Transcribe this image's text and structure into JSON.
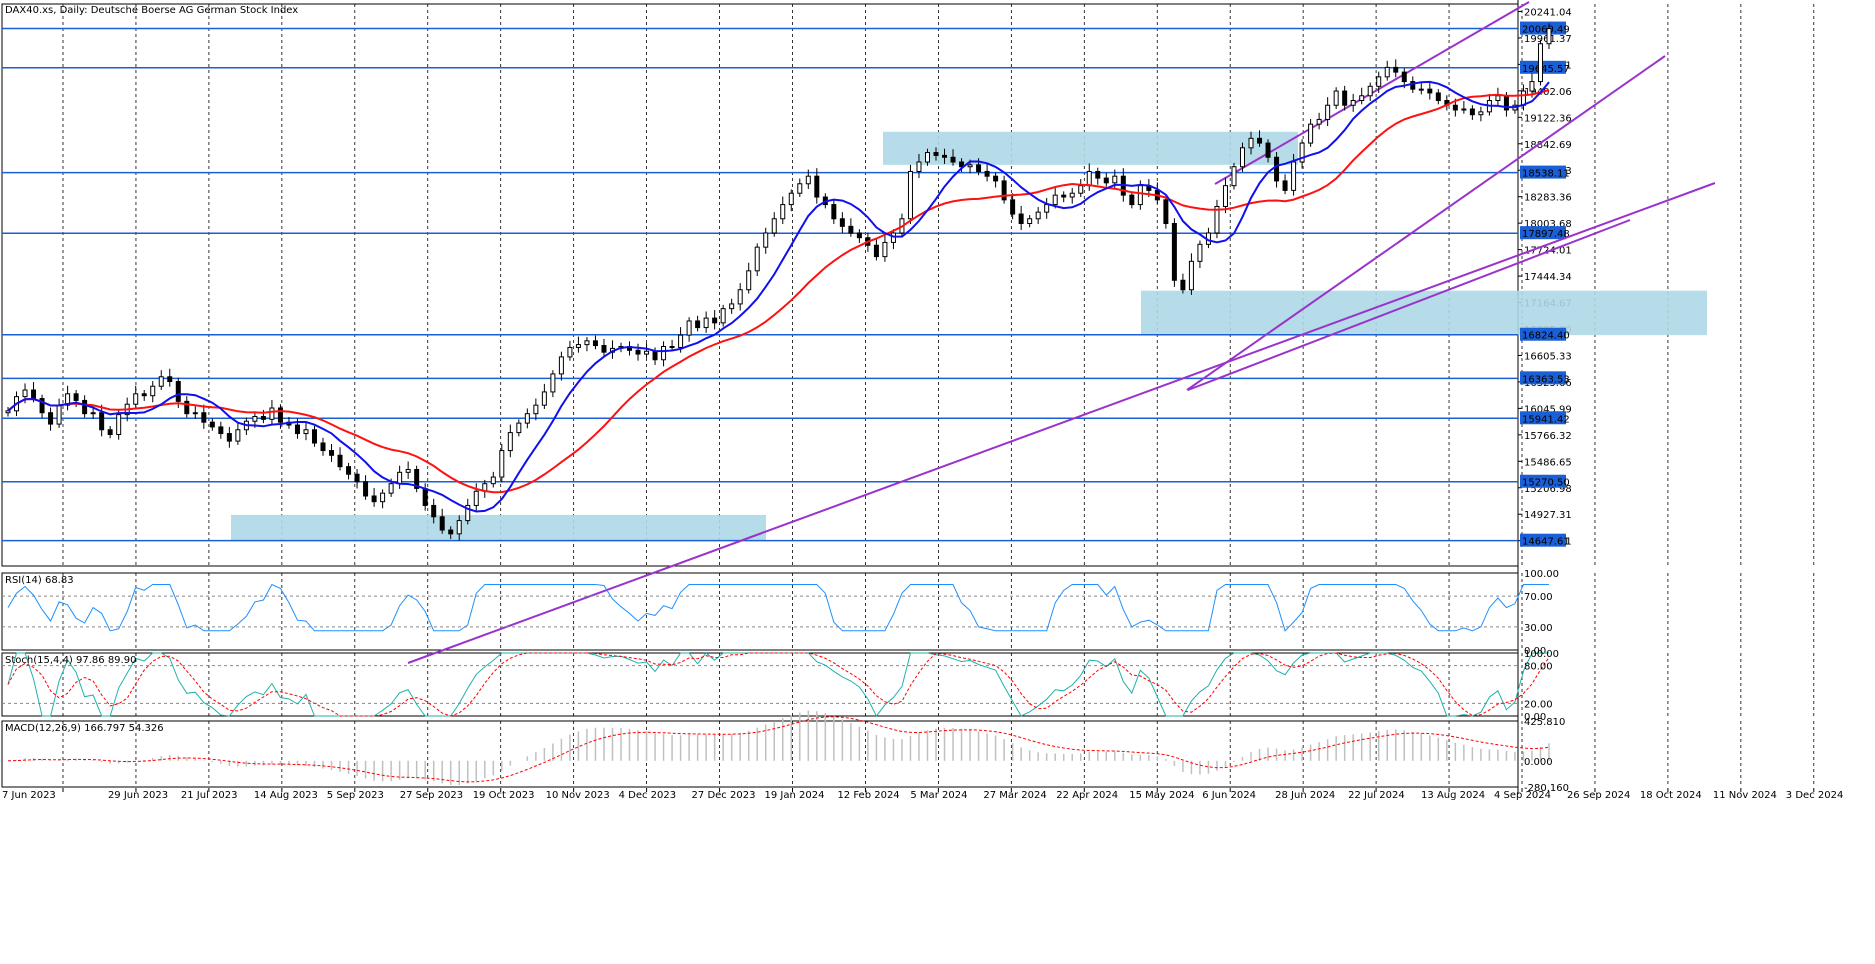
{
  "chart_data": [
    {
      "type": "candlestick",
      "title": "DAX40.xs, Daily:  Deutsche Boerse AG German Stock Index",
      "ylim": [
        14380,
        20320
      ],
      "price_labels": [
        "20241.04",
        "19961.37",
        "19681.71",
        "19402.06",
        "19122.36",
        "18842.69",
        "18563.03",
        "18283.36",
        "18003.68",
        "17724.01",
        "17444.34",
        "17164.67",
        "16885.00",
        "16605.33",
        "16325.66",
        "16045.99",
        "15766.32",
        "15486.65",
        "15206.98",
        "14927.31",
        "14647.61"
      ],
      "levels": [
        {
          "value": 20060.49,
          "label": "20060.49"
        },
        {
          "value": 19645.57,
          "label": "19645.57"
        },
        {
          "value": 18538.11,
          "label": "18538.11"
        },
        {
          "value": 17897.48,
          "label": "17897.48"
        },
        {
          "value": 16824.4,
          "label": "16824.40"
        },
        {
          "value": 16363.53,
          "label": "16363.53"
        },
        {
          "value": 15941.42,
          "label": "15941.42"
        },
        {
          "value": 15270.5,
          "label": "15270.50"
        },
        {
          "value": 14647.61,
          "label": "14647.61"
        }
      ],
      "x_labels": [
        "7 Jun 2023",
        "29 Jun 2023",
        "21 Jul 2023",
        "14 Aug 2023",
        "5 Sep 2023",
        "27 Sep 2023",
        "19 Oct 2023",
        "10 Nov 2023",
        "4 Dec 2023",
        "27 Dec 2023",
        "19 Jan 2024",
        "12 Feb 2024",
        "5 Mar 2024",
        "27 Mar 2024",
        "22 Apr 2024",
        "15 May 2024",
        "6 Jun 2024",
        "28 Jun 2024",
        "22 Jul 2024",
        "13 Aug 2024",
        "4 Sep 2024",
        "26 Sep 2024",
        "18 Oct 2024",
        "11 Nov 2024",
        "3 Dec 2024"
      ],
      "closes": [
        16020,
        16170,
        16240,
        16150,
        16000,
        15880,
        16080,
        16200,
        16130,
        15990,
        16000,
        15820,
        15770,
        15980,
        16090,
        16200,
        16180,
        16280,
        16380,
        16330,
        16120,
        15990,
        16000,
        15900,
        15850,
        15780,
        15700,
        15820,
        15910,
        15960,
        15930,
        16050,
        15900,
        15870,
        15780,
        15820,
        15680,
        15600,
        15550,
        15430,
        15350,
        15270,
        15120,
        15060,
        15150,
        15250,
        15370,
        15400,
        15200,
        15020,
        14900,
        14760,
        14720,
        14860,
        15020,
        15170,
        15250,
        15320,
        15600,
        15790,
        15890,
        15990,
        16080,
        16220,
        16410,
        16590,
        16690,
        16720,
        16760,
        16710,
        16640,
        16680,
        16700,
        16660,
        16620,
        16650,
        16560,
        16700,
        16690,
        16820,
        16970,
        16900,
        17000,
        16950,
        17100,
        17150,
        17300,
        17500,
        17750,
        17900,
        18050,
        18200,
        18320,
        18420,
        18500,
        18280,
        18200,
        18050,
        17970,
        17900,
        17850,
        17770,
        17650,
        17800,
        17900,
        18050,
        18550,
        18650,
        18750,
        18720,
        18700,
        18650,
        18600,
        18620,
        18550,
        18500,
        18450,
        18250,
        18100,
        18000,
        18050,
        18120,
        18200,
        18300,
        18280,
        18320,
        18400,
        18550,
        18480,
        18430,
        18500,
        18300,
        18200,
        18400,
        18350,
        18250,
        18000,
        17400,
        17300,
        17600,
        17780,
        17900,
        18180,
        18400,
        18600,
        18800,
        18900,
        18850,
        18700,
        18450,
        18350,
        18650,
        18850,
        19050,
        19100,
        19250,
        19400,
        19250,
        19300,
        19350,
        19450,
        19550,
        19650,
        19600,
        19500,
        19420,
        19420,
        19380,
        19300,
        19250,
        19200,
        19210,
        19150,
        19180,
        19300,
        19350,
        19200,
        19250,
        19400,
        19500,
        19900,
        20060
      ],
      "ma_fast_last": 19350,
      "ma_slow_last": 19300
    },
    {
      "type": "line",
      "title": "RSI(14) 68.83",
      "ylim": [
        0,
        100
      ],
      "levels": [
        30,
        70
      ],
      "tick_labels": [
        "100.00",
        "70.00",
        "30.00",
        "0.00"
      ]
    },
    {
      "type": "line",
      "title": "Stoch(15,4,4) 97.86 89.90",
      "ylim": [
        0,
        100
      ],
      "levels": [
        20,
        80
      ],
      "tick_labels": [
        "100.00",
        "80.00",
        "20.00",
        "0.00"
      ]
    },
    {
      "type": "bar",
      "title": "MACD(12,26,9) 166.797 54.326",
      "ylim": [
        -280.16,
        425.81
      ],
      "tick_labels": [
        "425.810",
        "0.000",
        "-280.160"
      ]
    }
  ],
  "colors": {
    "candle": "#000000",
    "ma_fast": "#1010ee",
    "ma_slow": "#ff1111",
    "level": "#1a5fd6",
    "zone": "#add8e6",
    "trend": "#9933cc",
    "rsi": "#1e90ff",
    "stoch_main": "#20b2aa",
    "stoch_signal": "#ff0000",
    "macd_hist": "#c0c0c0",
    "macd_signal": "#ff0000",
    "label_bg": "#1a5fd6"
  }
}
